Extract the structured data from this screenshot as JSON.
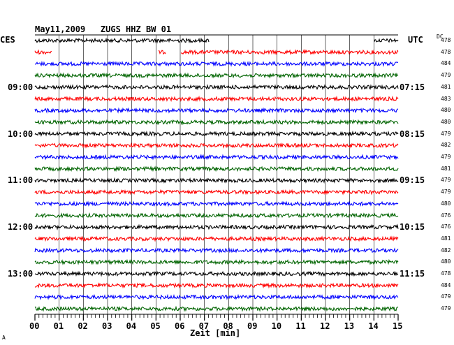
{
  "header": {
    "title": "May11,2009   ZUGS HHZ BW 01",
    "left_zone": "CES",
    "right_zone": "UTC",
    "dc_label": "DC"
  },
  "chart_data": {
    "type": "line",
    "title": "May11,2009   ZUGS HHZ BW 01",
    "xlabel": "Zeit [min]",
    "xlim": [
      0,
      15
    ],
    "x_ticks": [
      "00",
      "01",
      "02",
      "03",
      "04",
      "05",
      "06",
      "07",
      "08",
      "09",
      "10",
      "11",
      "12",
      "13",
      "14",
      "15"
    ],
    "trace_colors": [
      "#000000",
      "#ff0000",
      "#0000ff",
      "#006400"
    ],
    "rows": 24,
    "left_time_labels": [
      {
        "row": 4,
        "label": "09:00"
      },
      {
        "row": 8,
        "label": "10:00"
      },
      {
        "row": 12,
        "label": "11:00"
      },
      {
        "row": 16,
        "label": "12:00"
      },
      {
        "row": 20,
        "label": "13:00"
      }
    ],
    "right_time_labels": [
      {
        "row": 4,
        "label": "07:15"
      },
      {
        "row": 8,
        "label": "08:15"
      },
      {
        "row": 12,
        "label": "09:15"
      },
      {
        "row": 16,
        "label": "10:15"
      },
      {
        "row": 20,
        "label": "11:15"
      }
    ],
    "dc_values": [
      "478",
      "478",
      "484",
      "479",
      "481",
      "483",
      "480",
      "480",
      "479",
      "482",
      "479",
      "481",
      "479",
      "479",
      "480",
      "476",
      "476",
      "481",
      "482",
      "480",
      "478",
      "484",
      "479",
      "479"
    ],
    "gaps": [
      {
        "row": 0,
        "from_min": 7.2,
        "to_min": 14.0
      },
      {
        "row": 1,
        "from_min": 0.7,
        "to_min": 5.1
      },
      {
        "row": 1,
        "from_min": 5.4,
        "to_min": 6.0
      }
    ]
  },
  "footer": {
    "corner_mark": "A"
  }
}
